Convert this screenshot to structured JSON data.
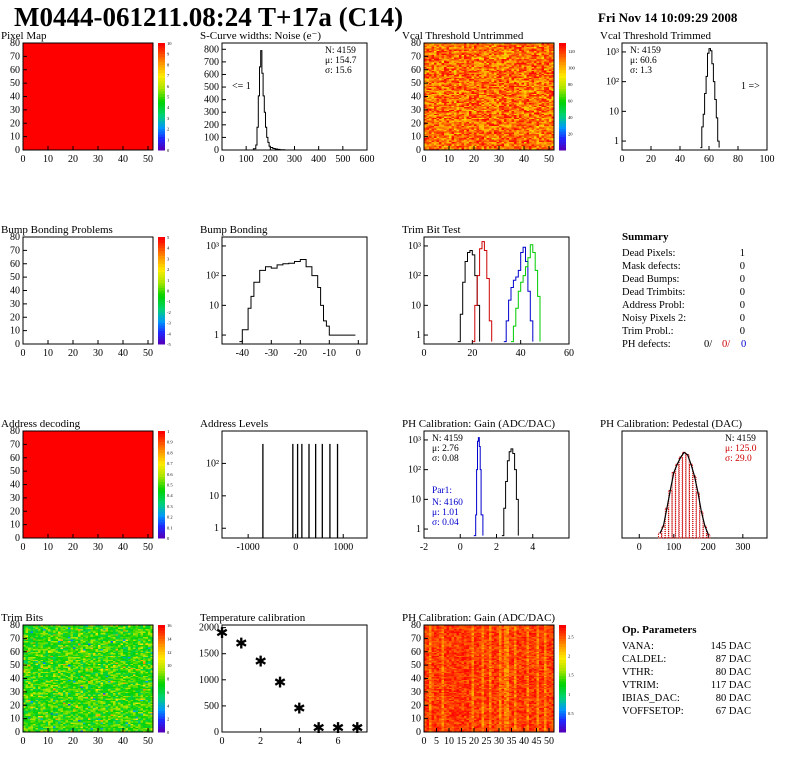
{
  "header": {
    "title": "M0444-061211.08:24 T+17a (C14)",
    "datestamp": "Fri Nov 14 10:09:29 2008"
  },
  "chart_data": [
    {
      "id": "pixel-map",
      "type": "heatmap",
      "title": "Pixel Map",
      "x_ticks": [
        0,
        10,
        20,
        30,
        40,
        50
      ],
      "y_ticks": [
        0,
        10,
        20,
        30,
        40,
        50,
        60,
        70,
        80
      ],
      "xlim": [
        0,
        52
      ],
      "ylim": [
        0,
        80
      ],
      "fill": "uniform-red",
      "z_ticks": [
        "0",
        "1",
        "2",
        "3",
        "4",
        "5",
        "6",
        "7",
        "8",
        "9",
        "10"
      ],
      "zlim": [
        0,
        10
      ]
    },
    {
      "id": "s-curve-widths",
      "type": "line",
      "title": "S-Curve widths: Noise (e⁻)",
      "x_ticks": [
        0,
        100,
        200,
        300,
        400,
        500,
        600
      ],
      "y_ticks": [
        0,
        100,
        200,
        300,
        400,
        500,
        600,
        700,
        800
      ],
      "xlim": [
        0,
        600
      ],
      "ylim": [
        0,
        850
      ],
      "x": [
        120,
        130,
        140,
        145,
        150,
        155,
        160,
        165,
        170,
        175,
        180,
        185,
        190,
        195,
        200,
        210,
        220,
        230,
        240,
        260
      ],
      "y": [
        0,
        10,
        40,
        180,
        430,
        660,
        790,
        610,
        430,
        300,
        180,
        100,
        60,
        30,
        20,
        12,
        8,
        5,
        2,
        0
      ],
      "stats": [
        "N: 4159",
        "μ: 154.7",
        "σ: 15.6"
      ],
      "annotation": "<= 1"
    },
    {
      "id": "vcal-untrimmed",
      "type": "heatmap",
      "title": "Vcal Threshold Untrimmed",
      "x_ticks": [
        0,
        10,
        20,
        30,
        40,
        50
      ],
      "y_ticks": [
        0,
        10,
        20,
        30,
        40,
        50,
        60,
        70,
        80
      ],
      "xlim": [
        0,
        52
      ],
      "ylim": [
        0,
        80
      ],
      "fill": "noise-orange-red",
      "z_ticks": [
        "20",
        "40",
        "60",
        "80",
        "100",
        "120"
      ],
      "zlim": [
        0,
        130
      ]
    },
    {
      "id": "vcal-trimmed",
      "type": "line",
      "title": "Vcal Threshold Trimmed",
      "x_ticks": [
        0,
        20,
        40,
        60,
        80,
        100
      ],
      "y_ticks": [
        1,
        10,
        100,
        1000
      ],
      "y_tick_labels": [
        "1",
        "10",
        "10²",
        "10³"
      ],
      "xlim": [
        0,
        100
      ],
      "ylim": [
        0.5,
        2000
      ],
      "log_y": true,
      "x": [
        54,
        55,
        56,
        57,
        58,
        59,
        60,
        61,
        62,
        63,
        64,
        65,
        66,
        67
      ],
      "y": [
        0.6,
        3,
        8,
        40,
        150,
        900,
        1300,
        1100,
        400,
        100,
        25,
        6,
        1,
        0.6
      ],
      "stats": [
        "N: 4159",
        "μ: 60.6",
        "σ: 1.3"
      ],
      "annotation": "1 =>"
    },
    {
      "id": "bump-problems",
      "type": "heatmap",
      "title": "Bump Bonding Problems",
      "x_ticks": [
        0,
        10,
        20,
        30,
        40,
        50
      ],
      "y_ticks": [
        0,
        10,
        20,
        30,
        40,
        50,
        60,
        70,
        80
      ],
      "xlim": [
        0,
        52
      ],
      "ylim": [
        0,
        80
      ],
      "fill": "empty",
      "z_ticks": [
        "-5",
        "-4",
        "-3",
        "-2",
        "-1",
        "0",
        "1",
        "2",
        "3",
        "4",
        "5"
      ],
      "zlim": [
        -5,
        5
      ]
    },
    {
      "id": "bump-bonding",
      "type": "line",
      "title": "Bump Bonding",
      "x_ticks": [
        -40,
        -30,
        -20,
        -10,
        0
      ],
      "y_ticks": [
        1,
        10,
        100,
        1000
      ],
      "y_tick_labels": [
        "1",
        "10",
        "10²",
        "10³"
      ],
      "xlim": [
        -47,
        3
      ],
      "ylim": [
        0.5,
        2000
      ],
      "log_y": true,
      "x": [
        -41,
        -40,
        -38,
        -37,
        -36,
        -34,
        -32,
        -30,
        -28,
        -26,
        -24,
        -22,
        -20,
        -18,
        -16,
        -14,
        -13,
        -12,
        -11,
        -10,
        -1
      ],
      "y": [
        0.6,
        1.5,
        8,
        20,
        60,
        150,
        200,
        180,
        230,
        250,
        260,
        300,
        350,
        200,
        100,
        40,
        10,
        3,
        2,
        1,
        1
      ]
    },
    {
      "id": "trim-bit-test",
      "type": "line",
      "title": "Trim Bit Test",
      "x_ticks": [
        0,
        20,
        40,
        60
      ],
      "y_ticks": [
        1,
        10,
        100,
        1000
      ],
      "y_tick_labels": [
        "1",
        "10",
        "10²",
        "10³"
      ],
      "xlim": [
        0,
        60
      ],
      "ylim": [
        0.5,
        2000
      ],
      "log_y": true,
      "series": [
        {
          "color": "#000000",
          "x": [
            14,
            15,
            16,
            17,
            18,
            19,
            20,
            21,
            22,
            23
          ],
          "y": [
            0.6,
            5,
            60,
            300,
            600,
            700,
            500,
            100,
            10,
            0.6
          ]
        },
        {
          "color": "#cc0000",
          "x": [
            20,
            21,
            22,
            23,
            24,
            25,
            26,
            27,
            28
          ],
          "y": [
            0.6,
            10,
            100,
            800,
            1400,
            700,
            80,
            3,
            0.6
          ]
        },
        {
          "color": "#0000cc",
          "x": [
            33,
            34,
            35,
            36,
            37,
            38,
            39,
            40,
            41,
            42,
            43,
            44,
            45
          ],
          "y": [
            0.6,
            3,
            15,
            40,
            70,
            90,
            150,
            600,
            900,
            300,
            30,
            3,
            0.6
          ]
        },
        {
          "color": "#00cc00",
          "x": [
            36,
            37,
            38,
            39,
            40,
            41,
            42,
            43,
            44,
            45,
            46,
            47,
            48
          ],
          "y": [
            0.6,
            2,
            8,
            30,
            60,
            100,
            200,
            400,
            1100,
            600,
            150,
            20,
            0.6
          ]
        }
      ]
    },
    {
      "id": "address-decoding",
      "type": "heatmap",
      "title": "Address decoding",
      "x_ticks": [
        0,
        10,
        20,
        30,
        40,
        50
      ],
      "y_ticks": [
        0,
        10,
        20,
        30,
        40,
        50,
        60,
        70,
        80
      ],
      "xlim": [
        0,
        52
      ],
      "ylim": [
        0,
        80
      ],
      "fill": "uniform-red",
      "z_ticks": [
        "0",
        "0.1",
        "0.2",
        "0.3",
        "0.4",
        "0.5",
        "0.6",
        "0.7",
        "0.8",
        "0.9",
        "1"
      ],
      "zlim": [
        0,
        1
      ]
    },
    {
      "id": "address-levels",
      "type": "line",
      "title": "Address Levels",
      "x_ticks": [
        -1000,
        0,
        1000
      ],
      "y_ticks": [
        1,
        10,
        100
      ],
      "y_tick_labels": [
        "1",
        "10",
        "10²"
      ],
      "xlim": [
        -1550,
        1500
      ],
      "ylim": [
        0.5,
        1000
      ],
      "log_y": true,
      "spikes": [
        -690,
        -60,
        40,
        130,
        280,
        420,
        560,
        720,
        880
      ]
    },
    {
      "id": "ph-gain",
      "type": "line",
      "title": "PH Calibration: Gain (ADC/DAC)",
      "x_ticks": [
        -2,
        0,
        2,
        4
      ],
      "y_ticks": [
        1,
        10,
        100,
        1000
      ],
      "y_tick_labels": [
        "1",
        "10",
        "10²",
        "10³"
      ],
      "xlim": [
        -2,
        6
      ],
      "ylim": [
        0.5,
        2000
      ],
      "log_y": true,
      "series": [
        {
          "color": "#000000",
          "x": [
            2.3,
            2.4,
            2.5,
            2.6,
            2.7,
            2.8,
            2.9,
            3.0,
            3.1,
            3.2
          ],
          "y": [
            0.6,
            5,
            40,
            200,
            400,
            500,
            350,
            100,
            10,
            0.6
          ]
        },
        {
          "color": "#0000cc",
          "x": [
            0.75,
            0.85,
            0.9,
            0.95,
            1.0,
            1.05,
            1.1,
            1.15,
            1.25
          ],
          "y": [
            0.6,
            3,
            100,
            900,
            1200,
            600,
            100,
            3,
            0.6
          ]
        }
      ],
      "stats": [
        "N: 4159",
        "μ: 2.76",
        "σ: 0.08"
      ],
      "stats2_label": "Par1:",
      "stats2": [
        "N: 4160",
        "μ: 1.01",
        "σ: 0.04"
      ]
    },
    {
      "id": "ph-pedestal",
      "type": "line",
      "title": "PH Calibration: Pedestal (DAC)",
      "x_ticks": [
        0,
        100,
        200,
        300
      ],
      "y_ticks": [],
      "xlim": [
        -50,
        370
      ],
      "ylim": [
        0,
        90
      ],
      "x": [
        60,
        70,
        80,
        90,
        100,
        110,
        120,
        130,
        140,
        150,
        160,
        170,
        180,
        190,
        200
      ],
      "y": [
        4,
        10,
        25,
        40,
        55,
        62,
        68,
        72,
        70,
        62,
        52,
        38,
        22,
        10,
        3
      ],
      "stats": [
        "N: 4159",
        "μ: 125.0",
        "σ: 29.0"
      ]
    },
    {
      "id": "trim-bits",
      "type": "heatmap",
      "title": "Trim Bits",
      "x_ticks": [
        0,
        10,
        20,
        30,
        40,
        50
      ],
      "y_ticks": [
        0,
        10,
        20,
        30,
        40,
        50,
        60,
        70,
        80
      ],
      "xlim": [
        0,
        52
      ],
      "ylim": [
        0,
        80
      ],
      "fill": "noise-green",
      "z_ticks": [
        "0",
        "2",
        "4",
        "6",
        "8",
        "10",
        "12",
        "14",
        "16"
      ],
      "zlim": [
        0,
        16
      ]
    },
    {
      "id": "temperature-calibration",
      "type": "scatter",
      "title": "Temperature calibration",
      "x_ticks": [
        0,
        2,
        4,
        6
      ],
      "y_ticks": [
        0,
        500,
        1000,
        1500,
        2000
      ],
      "xlim": [
        0,
        7.5
      ],
      "ylim": [
        0,
        2050
      ],
      "x": [
        0,
        1,
        2,
        3,
        4,
        5,
        6,
        7
      ],
      "y": [
        1900,
        1700,
        1350,
        950,
        450,
        80,
        80,
        80
      ]
    },
    {
      "id": "ph-gain-map",
      "type": "heatmap",
      "title": "PH Calibration: Gain (ADC/DAC)",
      "x_ticks": [
        0,
        5,
        10,
        15,
        20,
        25,
        30,
        35,
        40,
        45,
        50
      ],
      "y_ticks": [
        0,
        10,
        20,
        30,
        40,
        50,
        60,
        70,
        80
      ],
      "xlim": [
        0,
        52
      ],
      "ylim": [
        0,
        80
      ],
      "fill": "stripes-red",
      "z_ticks": [
        "0.5",
        "1",
        "1.5",
        "2",
        "2.5"
      ],
      "zlim": [
        0,
        2.8
      ]
    }
  ],
  "summary": {
    "title": "Summary",
    "rows": [
      {
        "label": "Dead Pixels:",
        "value": "1"
      },
      {
        "label": "Mask defects:",
        "value": "0"
      },
      {
        "label": "Dead Bumps:",
        "value": "0"
      },
      {
        "label": "Dead Trimbits:",
        "value": "0"
      },
      {
        "label": "Address Probl:",
        "value": "0"
      },
      {
        "label": "Noisy Pixels 2:",
        "value": "0"
      },
      {
        "label": "Trim Probl.:",
        "value": "0"
      }
    ],
    "ph_label": "PH defects:",
    "ph_values": [
      {
        "value": "0/",
        "color": "#000000"
      },
      {
        "value": "0/",
        "color": "#cc0000"
      },
      {
        "value": "0",
        "color": "#0000cc"
      }
    ]
  },
  "op_params": {
    "title": "Op. Parameters",
    "rows": [
      {
        "label": "VANA:",
        "value": "145 DAC"
      },
      {
        "label": "CALDEL:",
        "value": "87 DAC"
      },
      {
        "label": "VTHR:",
        "value": "80 DAC"
      },
      {
        "label": "VTRIM:",
        "value": "117 DAC"
      },
      {
        "label": "IBIAS_DAC:",
        "value": "80 DAC"
      },
      {
        "label": "VOFFSETOP:",
        "value": "67 DAC"
      }
    ]
  }
}
